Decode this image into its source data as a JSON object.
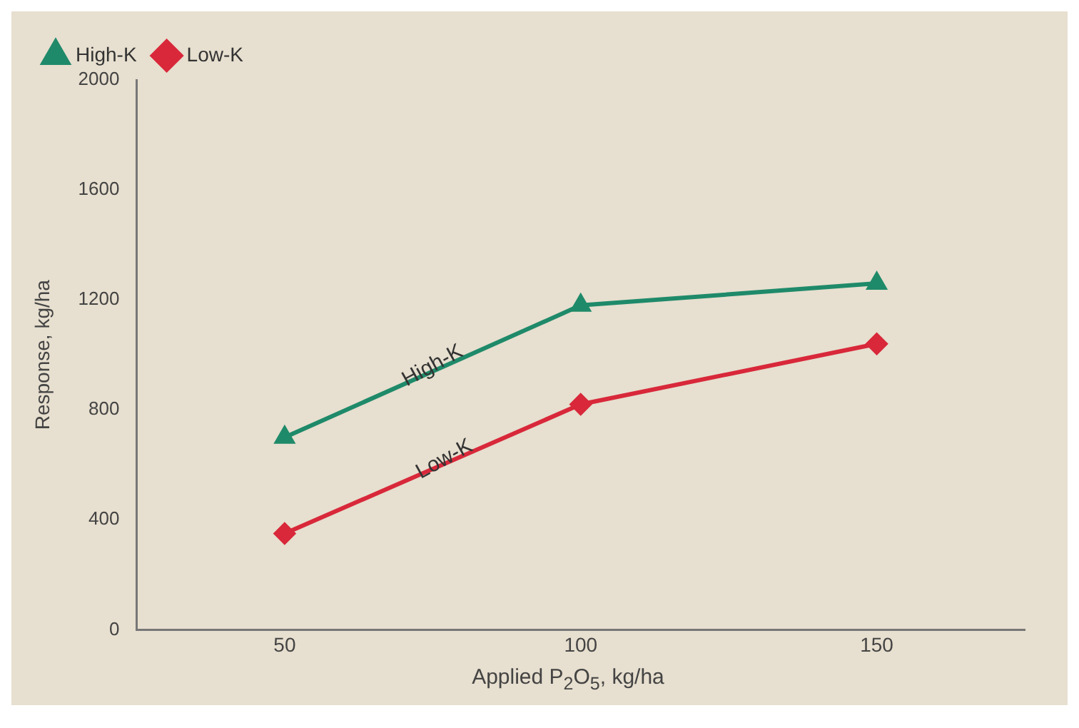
{
  "chart_data": {
    "type": "line",
    "xlabel": "Applied P$_{2}$O$_{5}$, kg/ha",
    "ylabel": "Response, kg/ha",
    "x": [
      50,
      100,
      150
    ],
    "series": [
      {
        "name": "High-K",
        "color": "#1f8a6a",
        "marker": "triangle",
        "values": [
          700,
          1180,
          1260
        ]
      },
      {
        "name": "Low-K",
        "color": "#d8283a",
        "marker": "diamond",
        "values": [
          350,
          820,
          1040
        ]
      }
    ],
    "xlim": [
      25,
      175
    ],
    "xticks": [
      50,
      100,
      150
    ],
    "ylim": [
      0,
      2000
    ],
    "yticks": [
      0,
      400,
      800,
      1200,
      1600,
      2000
    ],
    "grid": false,
    "legend": "top left",
    "annotations": [
      {
        "text": "High-K",
        "x": 75,
        "y": 960
      },
      {
        "text": "Low-K",
        "x": 77,
        "y": 620
      }
    ]
  }
}
